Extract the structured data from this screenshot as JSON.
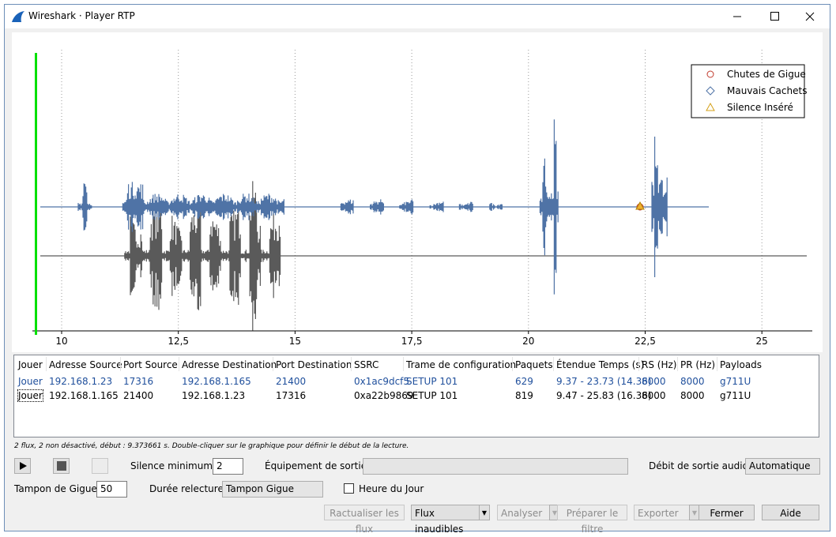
{
  "window": {
    "title": "Wireshark · Player RTP"
  },
  "plot": {
    "x_ticks": [
      "10",
      "12,5",
      "15",
      "17,5",
      "20",
      "22,5",
      "25"
    ],
    "legend": [
      "Chutes de Gigue",
      "Mauvais Cachets",
      "Silence Inséré"
    ]
  },
  "table": {
    "columns": [
      "Jouer",
      "Adresse Source",
      "Port Source",
      "Adresse Destination",
      "Port Destination",
      "SSRC",
      "Trame de configuration",
      "Paquets",
      "Étendue Temps (s)",
      "RS (Hz)",
      "PR (Hz)",
      "Payloads"
    ],
    "rows": [
      [
        "Jouer",
        "192.168.1.23",
        "17316",
        "192.168.1.165",
        "21400",
        "0x1ac9dcf5",
        "SETUP 101",
        "629",
        "9.37 - 23.73 (14.36)",
        "8000",
        "8000",
        "g711U"
      ],
      [
        "Jouer",
        "192.168.1.165",
        "21400",
        "192.168.1.23",
        "17316",
        "0xa22b9869",
        "SETUP 101",
        "819",
        "9.47 - 25.83 (16.36)",
        "8000",
        "8000",
        "g711U"
      ]
    ]
  },
  "status": "2 flux, 2 non désactivé, début : 9.373661 s. Double-cliquer sur le graphique pour définir le début de la lecture.",
  "controls": {
    "silence_label": "Silence minimum :",
    "silence_value": "2",
    "output_device_label": "Équipement de sortie :",
    "audio_rate_label": "Débit de sortie audio :",
    "audio_rate_value": "Automatique",
    "jitter_label": "Tampon de Gigue :",
    "jitter_value": "50",
    "replay_label": "Durée relecture :",
    "replay_value": "Tampon Gigue",
    "time_of_day": "Heure du Jour"
  },
  "buttons": [
    "Ractualiser les flux",
    "Flux inaudibles",
    "Analyser",
    "Préparer le filtre",
    "Exporter",
    "Fermer",
    "Aide"
  ]
}
